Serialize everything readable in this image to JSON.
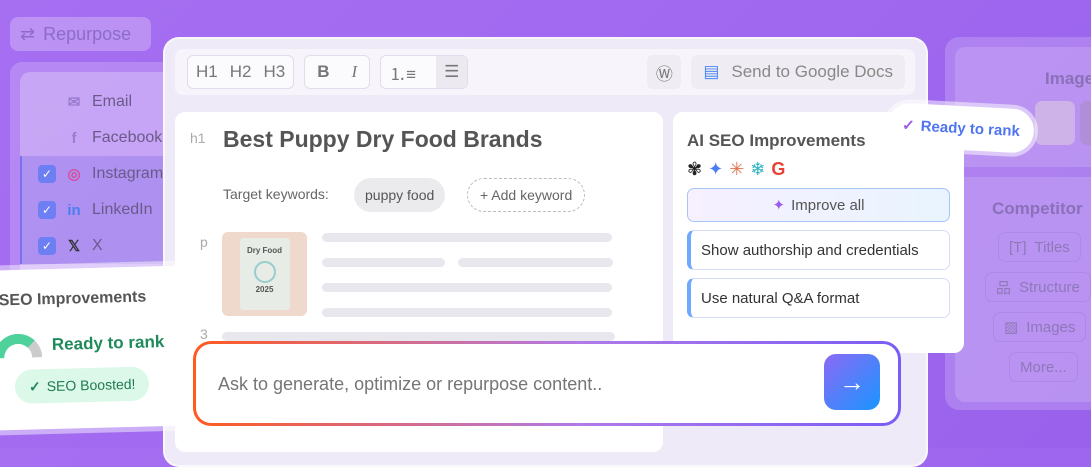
{
  "repurpose": {
    "label": "Repurpose",
    "icon": "repeat-icon"
  },
  "channels": [
    {
      "label": "Email",
      "icon": "mail-icon",
      "checked": false
    },
    {
      "label": "Facebook",
      "icon": "facebook-icon",
      "checked": false
    },
    {
      "label": "Instagram",
      "icon": "instagram-icon",
      "checked": true
    },
    {
      "label": "LinkedIn",
      "icon": "linkedin-icon",
      "checked": true
    },
    {
      "label": "X",
      "icon": "x-icon",
      "checked": true
    }
  ],
  "toolbar": {
    "h1": "H1",
    "h2": "H2",
    "h3": "H3",
    "bold": "B",
    "italic": "I",
    "send_docs": "Send to Google Docs"
  },
  "doc": {
    "h1_marker": "h1",
    "title": "Best Puppy Dry Food Brands",
    "keywords_label": "Target keywords:",
    "keyword": "puppy food",
    "add_keyword": "+ Add keyword",
    "p_marker": "p",
    "h3_marker": "3",
    "image_text": "Dry Food",
    "image_year": "2025"
  },
  "ai_seo": {
    "title": "AI SEO Improvements",
    "improve_all": "Improve all",
    "suggestions": [
      "Show authorship and credentials",
      "Use natural Q&A format"
    ],
    "providers": [
      "openai-icon",
      "gemini-icon",
      "claude-icon",
      "perplexity-icon",
      "google-icon"
    ]
  },
  "ready_pill": {
    "label": "Ready to rank"
  },
  "right": {
    "images": "Images",
    "competitor": "Competitor",
    "buttons": [
      "Titles",
      "Structure",
      "Images",
      "More..."
    ]
  },
  "seo_card": {
    "title": "SEO Improvements",
    "status": "Ready to rank",
    "badge": "SEO Boosted!"
  },
  "prompt": {
    "placeholder": "Ask to generate, optimize or repurpose content.."
  },
  "colors": {
    "background": "#a46ff0",
    "accent": "#7b6cf6",
    "green": "#1f8a5a"
  }
}
